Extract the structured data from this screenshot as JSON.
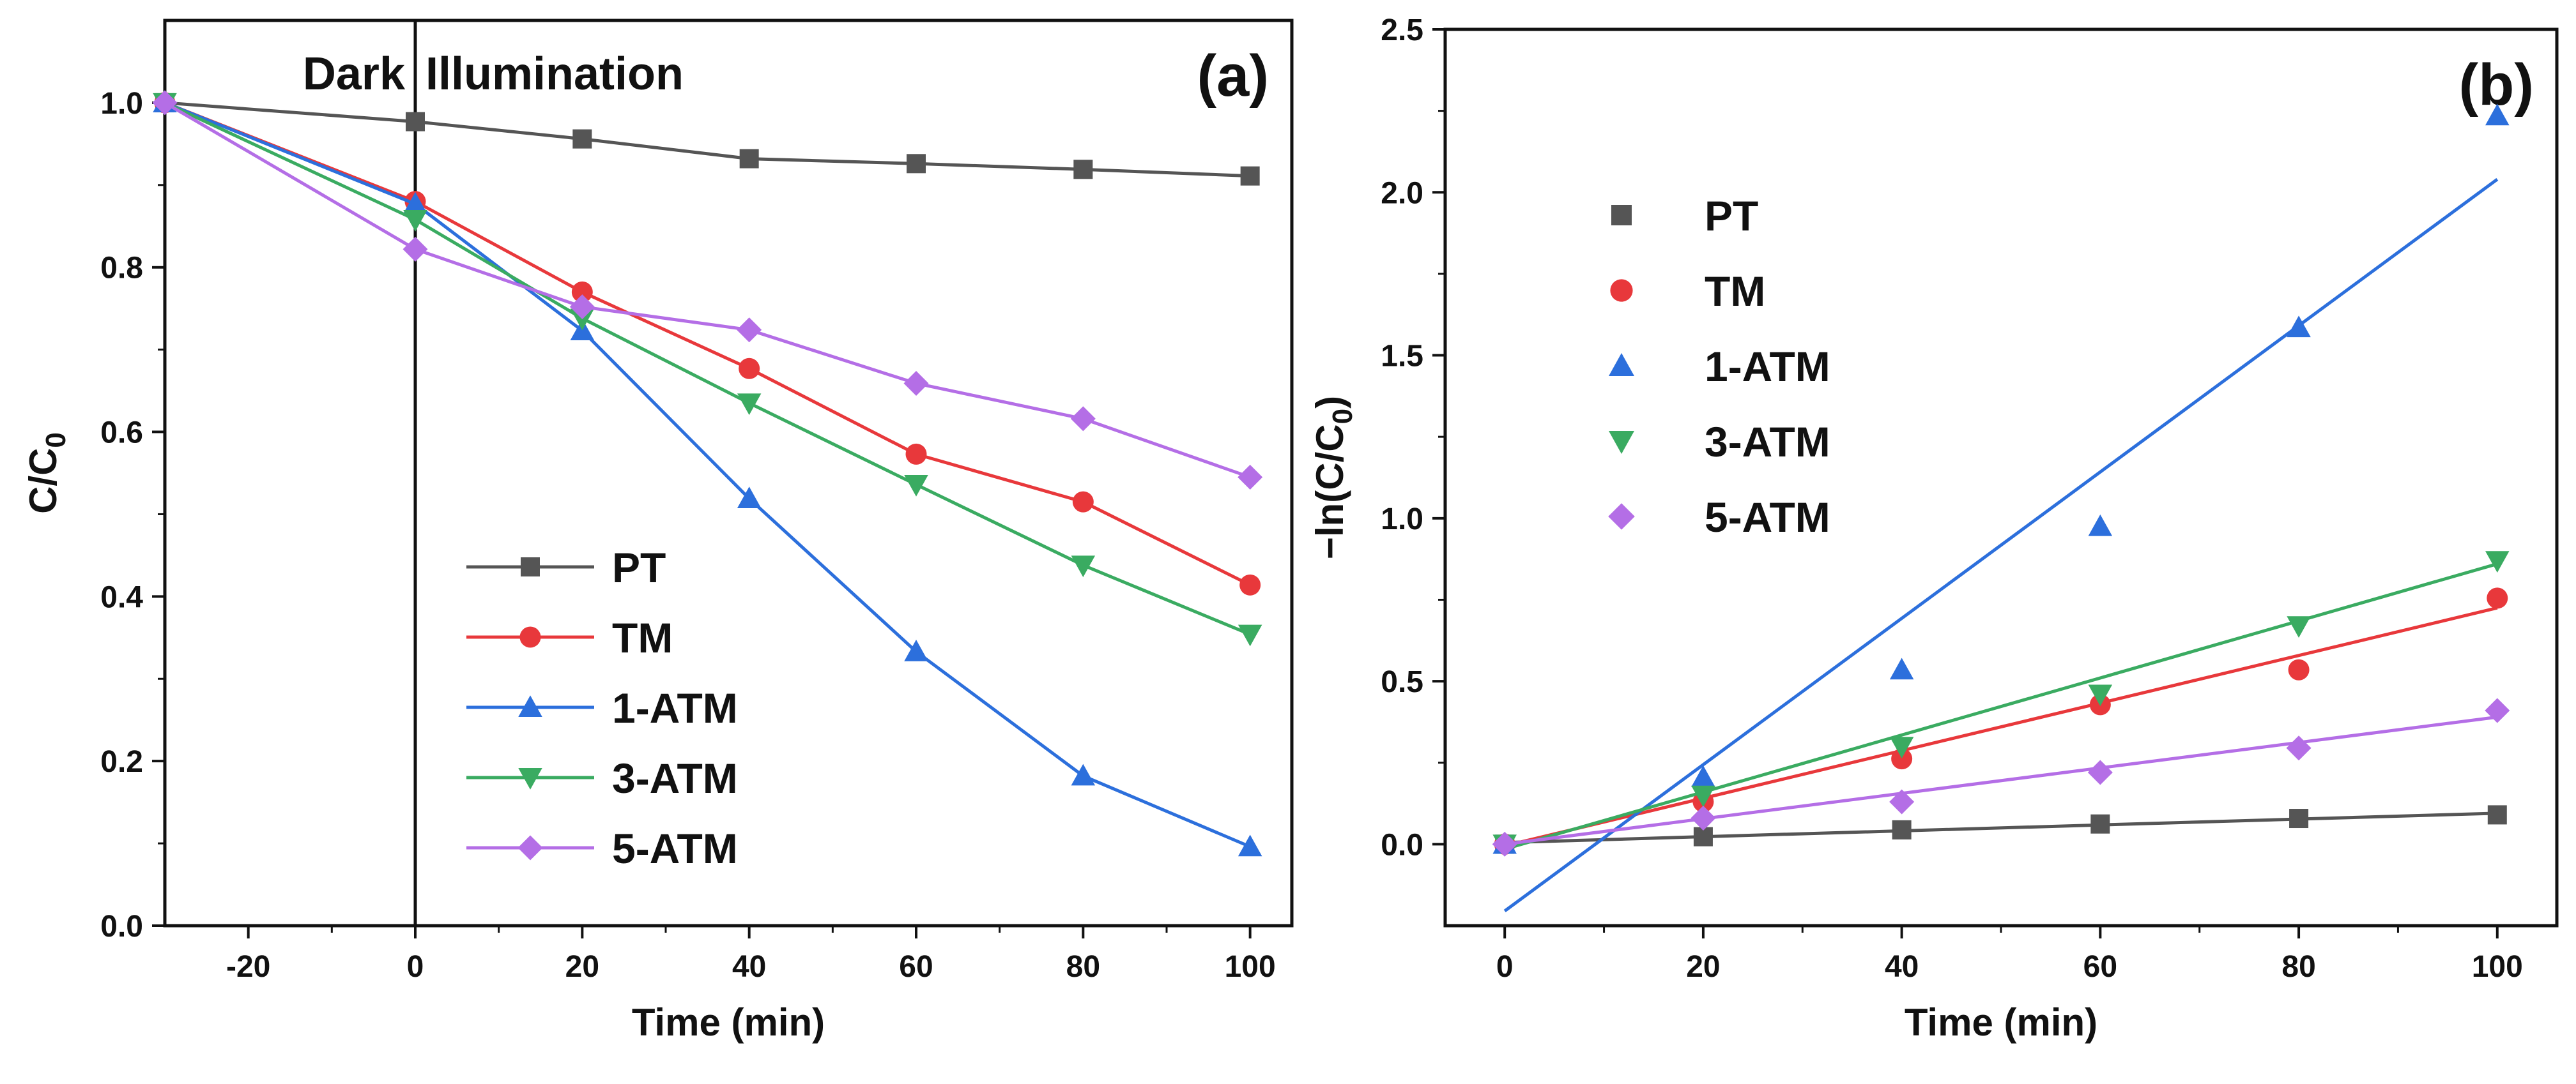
{
  "chart_data": [
    {
      "panel": "(a)",
      "type": "line",
      "title": "",
      "xlabel": "Time (min)",
      "ylabel_base": "C/C",
      "ylabel_sub": "0",
      "xlim": [
        -30,
        105
      ],
      "ylim": [
        0.0,
        1.1
      ],
      "xticks": [
        -20,
        0,
        20,
        40,
        60,
        80,
        100
      ],
      "xtick_labels": [
        "-20",
        "0",
        "20",
        "40",
        "60",
        "80",
        "100"
      ],
      "yticks": [
        0.0,
        0.2,
        0.4,
        0.6,
        0.8,
        1.0
      ],
      "ytick_labels": [
        "0.0",
        "0.2",
        "0.4",
        "0.6",
        "0.8",
        "1.0"
      ],
      "divider_x": 0,
      "annotations": [
        "Dark",
        "Illumination"
      ],
      "legend_position": "bottom-center",
      "x": [
        -30,
        0,
        20,
        40,
        60,
        80,
        100
      ],
      "series": [
        {
          "name": "PT",
          "color": "#555555",
          "marker": "square",
          "values": [
            1.0,
            0.977,
            0.956,
            0.932,
            0.926,
            0.919,
            0.911
          ]
        },
        {
          "name": "TM",
          "color": "#e8383b",
          "marker": "circle",
          "values": [
            1.0,
            0.88,
            0.77,
            0.677,
            0.573,
            0.515,
            0.414
          ]
        },
        {
          "name": "1-ATM",
          "color": "#2c6fdc",
          "marker": "triangle-up",
          "values": [
            1.0,
            0.877,
            0.723,
            0.519,
            0.333,
            0.182,
            0.096
          ]
        },
        {
          "name": "3-ATM",
          "color": "#3aab61",
          "marker": "triangle-down",
          "values": [
            1.0,
            0.858,
            0.738,
            0.635,
            0.536,
            0.438,
            0.354
          ]
        },
        {
          "name": "5-ATM",
          "color": "#b46ee6",
          "marker": "diamond",
          "values": [
            1.0,
            0.822,
            0.752,
            0.724,
            0.659,
            0.616,
            0.545
          ]
        }
      ]
    },
    {
      "panel": "(b)",
      "type": "scatter",
      "title": "",
      "xlabel": "Time (min)",
      "ylabel_prefix": "−ln(C/C",
      "ylabel_sub": "0",
      "ylabel_suffix": ")",
      "xlim": [
        -6,
        106
      ],
      "ylim": [
        -0.25,
        2.5
      ],
      "xticks": [
        0,
        20,
        40,
        60,
        80,
        100
      ],
      "xtick_labels": [
        "0",
        "20",
        "40",
        "60",
        "80",
        "100"
      ],
      "yticks": [
        0.0,
        0.5,
        1.0,
        1.5,
        2.0,
        2.5
      ],
      "ytick_labels": [
        "0.0",
        "0.5",
        "1.0",
        "1.5",
        "2.0",
        "2.5"
      ],
      "legend_position": "top-left",
      "x": [
        0,
        20,
        40,
        60,
        80,
        100
      ],
      "series": [
        {
          "name": "PT",
          "color": "#555555",
          "marker": "square",
          "values": [
            0.0,
            0.023,
            0.044,
            0.062,
            0.079,
            0.09
          ],
          "fit": [
            0.005,
            0.095
          ]
        },
        {
          "name": "TM",
          "color": "#e8383b",
          "marker": "circle",
          "values": [
            0.0,
            0.13,
            0.262,
            0.428,
            0.535,
            0.755
          ],
          "fit": [
            -0.005,
            0.725
          ]
        },
        {
          "name": "1-ATM",
          "color": "#2c6fdc",
          "marker": "triangle-up",
          "values": [
            0.0,
            0.205,
            0.535,
            0.975,
            1.585,
            2.235
          ],
          "fit": [
            -0.205,
            2.04
          ]
        },
        {
          "name": "3-ATM",
          "color": "#3aab61",
          "marker": "triangle-down",
          "values": [
            0.0,
            0.15,
            0.3,
            0.46,
            0.67,
            0.87
          ],
          "fit": [
            -0.015,
            0.86
          ]
        },
        {
          "name": "5-ATM",
          "color": "#b46ee6",
          "marker": "diamond",
          "values": [
            0.0,
            0.08,
            0.13,
            0.22,
            0.295,
            0.41
          ],
          "fit": [
            0.0,
            0.39
          ]
        }
      ]
    }
  ]
}
